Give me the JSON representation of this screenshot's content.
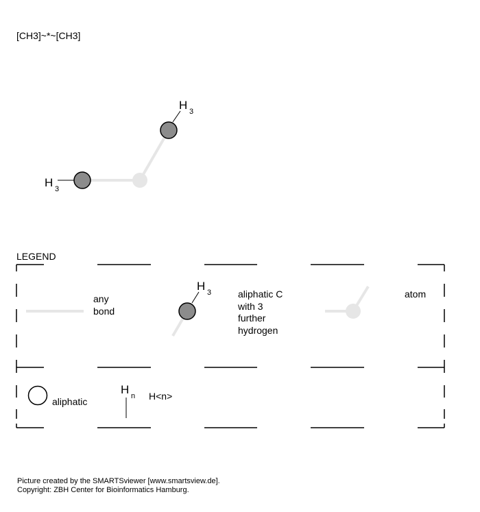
{
  "smarts": "[CH3]~*~[CH3]",
  "molecule": {
    "h_label": "H",
    "h_count": "3"
  },
  "legend": {
    "title": "LEGEND",
    "any_bond": [
      "any",
      "bond"
    ],
    "aliphatic_c": [
      "aliphatic C",
      "with 3",
      "further",
      "hydrogen"
    ],
    "atom": "atom",
    "aliphatic": "aliphatic",
    "h_label": "H",
    "h_sub": "n",
    "hn": "H<n>"
  },
  "footer": {
    "line1": "Picture created by the SMARTSviewer [www.smartsview.de].",
    "line2": "Copyright: ZBH Center for Bioinformatics Hamburg."
  },
  "colors": {
    "aliphatic_c_fill": "#8c8c8c",
    "any_atom_fill": "#e6e6e6",
    "bond": "#e6e6e6",
    "stroke": "#000000"
  }
}
